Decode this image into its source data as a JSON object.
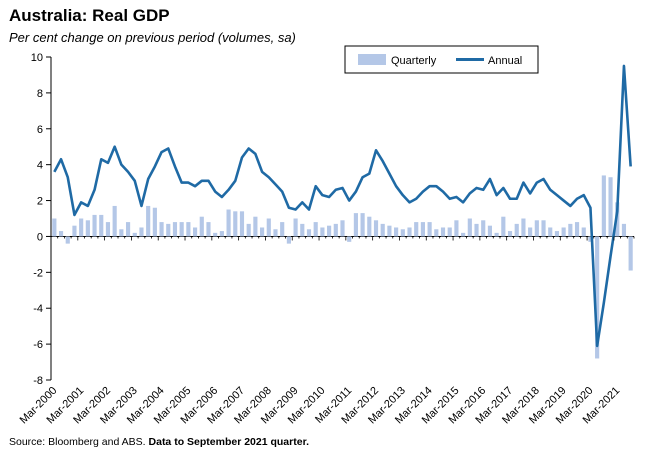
{
  "chart_data": {
    "type": "bar+line",
    "title": "Australia: Real GDP",
    "subtitle": "Per cent change on previous period (volumes, sa)",
    "ylim": [
      -8,
      10
    ],
    "yticks": [
      -8,
      -6,
      -4,
      -2,
      0,
      2,
      4,
      6,
      8,
      10
    ],
    "x_start": "Mar-2000",
    "x_ticks": [
      "Mar-2000",
      "Mar-2001",
      "Mar-2002",
      "Mar-2003",
      "Mar-2004",
      "Mar-2005",
      "Mar-2006",
      "Mar-2007",
      "Mar-2008",
      "Mar-2009",
      "Mar-2010",
      "Mar-2011",
      "Mar-2012",
      "Mar-2013",
      "Mar-2014",
      "Mar-2015",
      "Mar-2016",
      "Mar-2017",
      "Mar-2018",
      "Mar-2019",
      "Mar-2020",
      "Mar-2021"
    ],
    "legend": {
      "position": "top-right",
      "quarterly": "Quarterly",
      "annual": "Annual"
    },
    "series": [
      {
        "name": "Quarterly",
        "kind": "bar",
        "color": "#b4c7e7",
        "values": [
          1.0,
          0.3,
          -0.4,
          0.6,
          1.0,
          0.9,
          1.2,
          1.2,
          0.8,
          1.7,
          0.4,
          0.8,
          0.2,
          0.5,
          1.7,
          1.6,
          0.8,
          0.7,
          0.8,
          0.8,
          0.8,
          0.5,
          1.1,
          0.8,
          0.2,
          0.3,
          1.5,
          1.4,
          1.4,
          0.7,
          1.1,
          0.5,
          1.0,
          0.4,
          0.8,
          -0.4,
          1.0,
          0.7,
          0.4,
          0.8,
          0.5,
          0.6,
          0.7,
          0.9,
          -0.3,
          1.3,
          1.3,
          1.1,
          0.9,
          0.7,
          0.6,
          0.5,
          0.4,
          0.5,
          0.8,
          0.8,
          0.8,
          0.4,
          0.5,
          0.5,
          0.9,
          0.2,
          1.0,
          0.7,
          0.9,
          0.6,
          0.2,
          1.1,
          0.3,
          0.7,
          1.0,
          0.5,
          0.9,
          0.9,
          0.5,
          0.3,
          0.5,
          0.7,
          0.8,
          0.5,
          -0.3,
          -6.8,
          3.4,
          3.3,
          1.9,
          0.7,
          -1.9
        ]
      },
      {
        "name": "Annual",
        "kind": "line",
        "color": "#1f6aa5",
        "values": [
          3.6,
          4.3,
          3.3,
          1.2,
          1.9,
          1.7,
          2.6,
          4.3,
          4.1,
          5.0,
          4.0,
          3.6,
          3.1,
          1.7,
          3.2,
          3.9,
          4.7,
          4.9,
          3.9,
          3.0,
          3.0,
          2.8,
          3.1,
          3.1,
          2.5,
          2.2,
          2.6,
          3.1,
          4.4,
          4.9,
          4.6,
          3.6,
          3.3,
          2.9,
          2.5,
          1.6,
          1.5,
          1.9,
          1.5,
          2.8,
          2.3,
          2.2,
          2.6,
          2.7,
          2.0,
          2.5,
          3.3,
          3.5,
          4.8,
          4.2,
          3.5,
          2.8,
          2.3,
          1.9,
          2.1,
          2.5,
          2.8,
          2.8,
          2.5,
          2.1,
          2.2,
          1.9,
          2.4,
          2.7,
          2.6,
          3.2,
          2.3,
          2.7,
          2.1,
          2.1,
          3.0,
          2.4,
          3.0,
          3.2,
          2.6,
          2.3,
          2.0,
          1.7,
          2.1,
          2.3,
          1.6,
          -6.1,
          -3.7,
          -1.1,
          1.4,
          9.5,
          3.9
        ]
      }
    ]
  },
  "source": {
    "prefix": "Source: Bloomberg and ABS.",
    "bold": "Data to September 2021 quarter."
  }
}
